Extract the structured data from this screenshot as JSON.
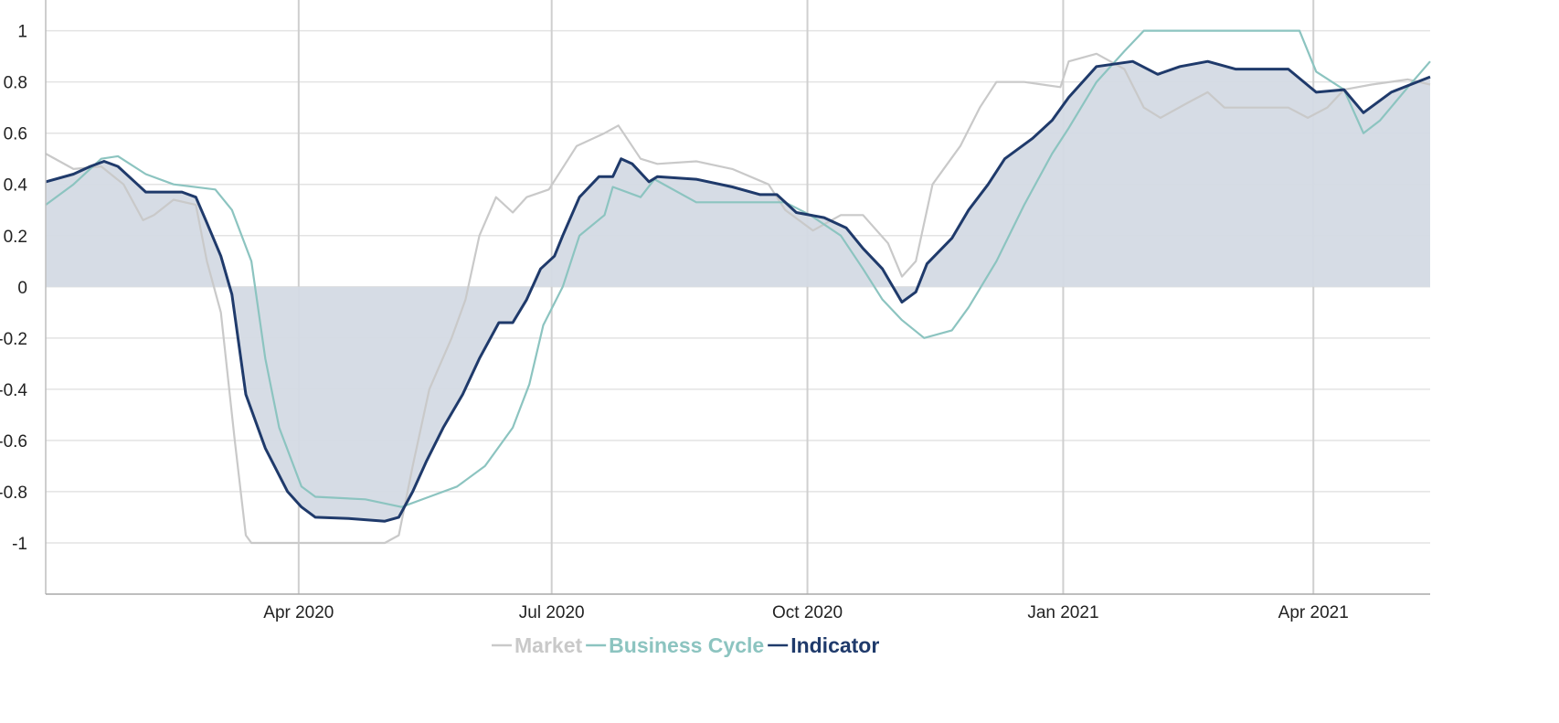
{
  "chart_data": {
    "type": "line",
    "title": "",
    "xlabel": "",
    "ylabel": "",
    "x_unit": "days since 2020-01-01",
    "xlim": [
      0,
      498
    ],
    "ylim": [
      -1.2,
      1.12
    ],
    "grid": true,
    "legend_position": "bottom-center",
    "y_ticks": [
      {
        "v": 1,
        "label": "1"
      },
      {
        "v": 0.8,
        "label": "0.8"
      },
      {
        "v": 0.6,
        "label": "0.6"
      },
      {
        "v": 0.4,
        "label": "0.4"
      },
      {
        "v": 0.2,
        "label": "0.2"
      },
      {
        "v": 0,
        "label": "0"
      },
      {
        "v": -0.2,
        "label": "-0.2"
      },
      {
        "v": -0.4,
        "label": "-0.4"
      },
      {
        "v": -0.6,
        "label": "-0.6"
      },
      {
        "v": -0.8,
        "label": "-0.8"
      },
      {
        "v": -1,
        "label": "-1"
      }
    ],
    "x_ticks": [
      {
        "v": 91,
        "label": "Apr 2020"
      },
      {
        "v": 182,
        "label": "Jul 2020"
      },
      {
        "v": 274,
        "label": "Oct 2020"
      },
      {
        "v": 366,
        "label": "Jan 2021"
      },
      {
        "v": 456,
        "label": "Apr 2021"
      }
    ],
    "series": [
      {
        "name": "Market",
        "color": "#c9c9c9",
        "fill": false,
        "x": [
          0,
          10,
          20,
          28,
          35,
          39,
          46,
          54,
          58,
          63,
          68,
          72,
          74,
          122,
          127,
          132,
          138,
          146,
          151,
          156,
          162,
          168,
          173,
          181,
          191,
          201,
          206,
          214,
          220,
          234,
          247,
          260,
          266,
          276,
          286,
          294,
          303,
          308,
          313,
          319,
          329,
          336,
          342,
          352,
          365,
          368,
          378,
          388,
          395,
          401,
          411,
          418,
          424,
          438,
          447,
          454,
          461,
          467,
          477,
          490,
          498
        ],
        "y": [
          0.52,
          0.46,
          0.47,
          0.4,
          0.26,
          0.28,
          0.34,
          0.32,
          0.1,
          -0.1,
          -0.6,
          -0.97,
          -1.0,
          -1.0,
          -0.97,
          -0.7,
          -0.4,
          -0.2,
          -0.05,
          0.2,
          0.35,
          0.29,
          0.35,
          0.38,
          0.55,
          0.6,
          0.63,
          0.5,
          0.48,
          0.49,
          0.46,
          0.4,
          0.3,
          0.22,
          0.28,
          0.28,
          0.17,
          0.04,
          0.1,
          0.4,
          0.55,
          0.7,
          0.8,
          0.8,
          0.78,
          0.88,
          0.91,
          0.85,
          0.7,
          0.66,
          0.72,
          0.76,
          0.7,
          0.7,
          0.7,
          0.66,
          0.7,
          0.77,
          0.79,
          0.81,
          0.79
        ]
      },
      {
        "name": "Business Cycle",
        "color": "#8cc4c0",
        "fill": false,
        "x": [
          0,
          10,
          20,
          26,
          36,
          46,
          61,
          67,
          74,
          79,
          84,
          92,
          97,
          115,
          128,
          138,
          148,
          158,
          168,
          174,
          179,
          186,
          192,
          201,
          204,
          214,
          219,
          234,
          253,
          266,
          275,
          286,
          294,
          301,
          308,
          316,
          326,
          332,
          342,
          352,
          362,
          368,
          378,
          388,
          395,
          451,
          457,
          467,
          474,
          480,
          490,
          498
        ],
        "y": [
          0.32,
          0.4,
          0.5,
          0.51,
          0.44,
          0.4,
          0.38,
          0.3,
          0.1,
          -0.28,
          -0.55,
          -0.78,
          -0.82,
          -0.83,
          -0.86,
          -0.82,
          -0.78,
          -0.7,
          -0.55,
          -0.38,
          -0.15,
          0.0,
          0.2,
          0.28,
          0.39,
          0.35,
          0.42,
          0.33,
          0.33,
          0.33,
          0.28,
          0.2,
          0.07,
          -0.05,
          -0.13,
          -0.2,
          -0.17,
          -0.08,
          0.1,
          0.32,
          0.52,
          0.62,
          0.8,
          0.92,
          1.0,
          1.0,
          0.84,
          0.77,
          0.6,
          0.65,
          0.78,
          0.88
        ]
      },
      {
        "name": "Indicator",
        "color": "#1f3a6b",
        "fill": true,
        "fill_color": "#d4dae4",
        "x": [
          0,
          10,
          16,
          21,
          26,
          33,
          36,
          43,
          49,
          54,
          58,
          63,
          67,
          72,
          79,
          87,
          92,
          97,
          109,
          122,
          127,
          132,
          137,
          143,
          150,
          156,
          163,
          168,
          173,
          178,
          183,
          186,
          192,
          199,
          204,
          207,
          211,
          217,
          220,
          234,
          247,
          257,
          263,
          270,
          280,
          288,
          294,
          301,
          308,
          313,
          317,
          326,
          332,
          339,
          345,
          355,
          362,
          368,
          378,
          391,
          400,
          408,
          418,
          428,
          438,
          447,
          457,
          467,
          474,
          484,
          498
        ],
        "y": [
          0.41,
          0.44,
          0.47,
          0.49,
          0.47,
          0.4,
          0.37,
          0.37,
          0.37,
          0.35,
          0.25,
          0.12,
          -0.03,
          -0.42,
          -0.63,
          -0.8,
          -0.86,
          -0.9,
          -0.905,
          -0.915,
          -0.9,
          -0.8,
          -0.68,
          -0.55,
          -0.42,
          -0.28,
          -0.14,
          -0.14,
          -0.05,
          0.07,
          0.12,
          0.2,
          0.35,
          0.43,
          0.43,
          0.5,
          0.48,
          0.41,
          0.43,
          0.42,
          0.39,
          0.36,
          0.36,
          0.29,
          0.27,
          0.23,
          0.15,
          0.07,
          -0.06,
          -0.02,
          0.09,
          0.19,
          0.3,
          0.4,
          0.5,
          0.58,
          0.65,
          0.74,
          0.86,
          0.88,
          0.83,
          0.86,
          0.88,
          0.85,
          0.85,
          0.85,
          0.76,
          0.77,
          0.68,
          0.76,
          0.82
        ]
      }
    ]
  }
}
